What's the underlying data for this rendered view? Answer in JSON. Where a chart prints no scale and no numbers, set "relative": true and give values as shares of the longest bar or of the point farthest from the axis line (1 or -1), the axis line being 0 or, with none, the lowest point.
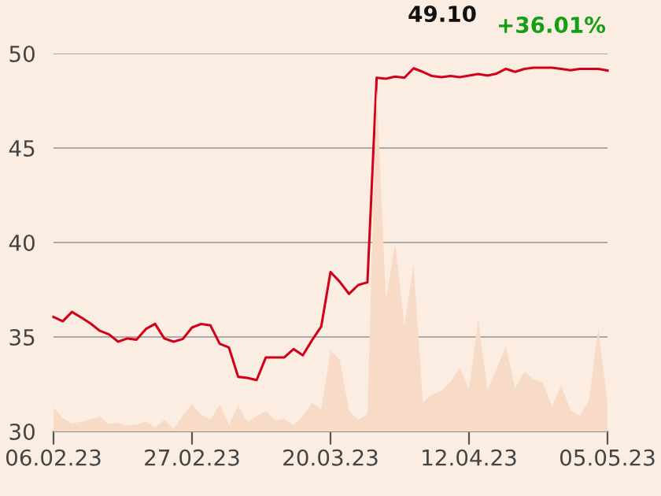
{
  "chart_data": [
    {
      "type": "line",
      "annotations": [
        "49.10",
        "+36.01%"
      ],
      "categories": [
        "06.02.23",
        null,
        null,
        null,
        null,
        null,
        null,
        null,
        null,
        null,
        null,
        null,
        null,
        null,
        null,
        "27.02.23",
        null,
        null,
        null,
        null,
        null,
        null,
        null,
        null,
        null,
        null,
        null,
        null,
        null,
        null,
        "20.03.23",
        null,
        null,
        null,
        null,
        null,
        null,
        null,
        null,
        null,
        null,
        null,
        null,
        null,
        null,
        "12.04.23",
        null,
        null,
        null,
        null,
        null,
        null,
        null,
        null,
        null,
        null,
        null,
        null,
        null,
        null,
        "05.05.23"
      ],
      "series": [
        {
          "color": "#d0021b",
          "values": [
            36.06,
            35.83,
            36.33,
            36.03,
            35.72,
            35.33,
            35.14,
            34.75,
            34.92,
            34.86,
            35.42,
            35.69,
            34.92,
            34.75,
            34.89,
            35.5,
            35.69,
            35.61,
            34.64,
            34.44,
            32.89,
            32.83,
            32.72,
            33.92,
            33.92,
            33.92,
            34.36,
            34.03,
            34.83,
            35.56,
            38.44,
            37.92,
            37.28,
            37.75,
            37.89,
            48.72,
            48.67,
            48.78,
            48.72,
            49.22,
            49.03,
            48.81,
            48.75,
            48.81,
            48.75,
            48.83,
            48.92,
            48.83,
            48.94,
            49.19,
            49.03,
            49.19,
            49.25,
            49.25,
            49.25,
            49.19,
            49.11,
            49.19,
            49.19,
            49.19,
            49.1
          ]
        }
      ],
      "ylim": [
        30,
        50
      ],
      "yticks": [
        30,
        35,
        40,
        45,
        50
      ],
      "grid": "y"
    },
    {
      "type": "area",
      "relative": true,
      "tick_labels": false,
      "categories": [
        "06.02.23",
        null,
        null,
        null,
        null,
        null,
        null,
        null,
        null,
        null,
        null,
        null,
        null,
        null,
        null,
        "27.02.23",
        null,
        null,
        null,
        null,
        null,
        null,
        null,
        null,
        null,
        null,
        null,
        null,
        null,
        null,
        "20.03.23",
        null,
        null,
        null,
        null,
        null,
        null,
        null,
        null,
        null,
        null,
        null,
        null,
        null,
        null,
        "12.04.23",
        null,
        null,
        null,
        null,
        null,
        null,
        null,
        null,
        null,
        null,
        null,
        null,
        null,
        null,
        "05.05.23"
      ],
      "series": [
        {
          "color": "#f8dbc6",
          "values": [
            0.07,
            0.04,
            0.023,
            0.028,
            0.035,
            0.043,
            0.022,
            0.025,
            0.017,
            0.02,
            0.029,
            0.012,
            0.034,
            0.008,
            0.046,
            0.08,
            0.049,
            0.035,
            0.078,
            0.02,
            0.075,
            0.028,
            0.045,
            0.06,
            0.032,
            0.037,
            0.018,
            0.045,
            0.084,
            0.065,
            0.237,
            0.21,
            0.061,
            0.034,
            0.05,
            1.0,
            0.384,
            0.553,
            0.307,
            0.49,
            0.085,
            0.108,
            0.118,
            0.146,
            0.187,
            0.123,
            0.327,
            0.121,
            0.184,
            0.25,
            0.127,
            0.174,
            0.154,
            0.143,
            0.075,
            0.134,
            0.061,
            0.046,
            0.092,
            0.303,
            0.085
          ]
        }
      ]
    }
  ]
}
